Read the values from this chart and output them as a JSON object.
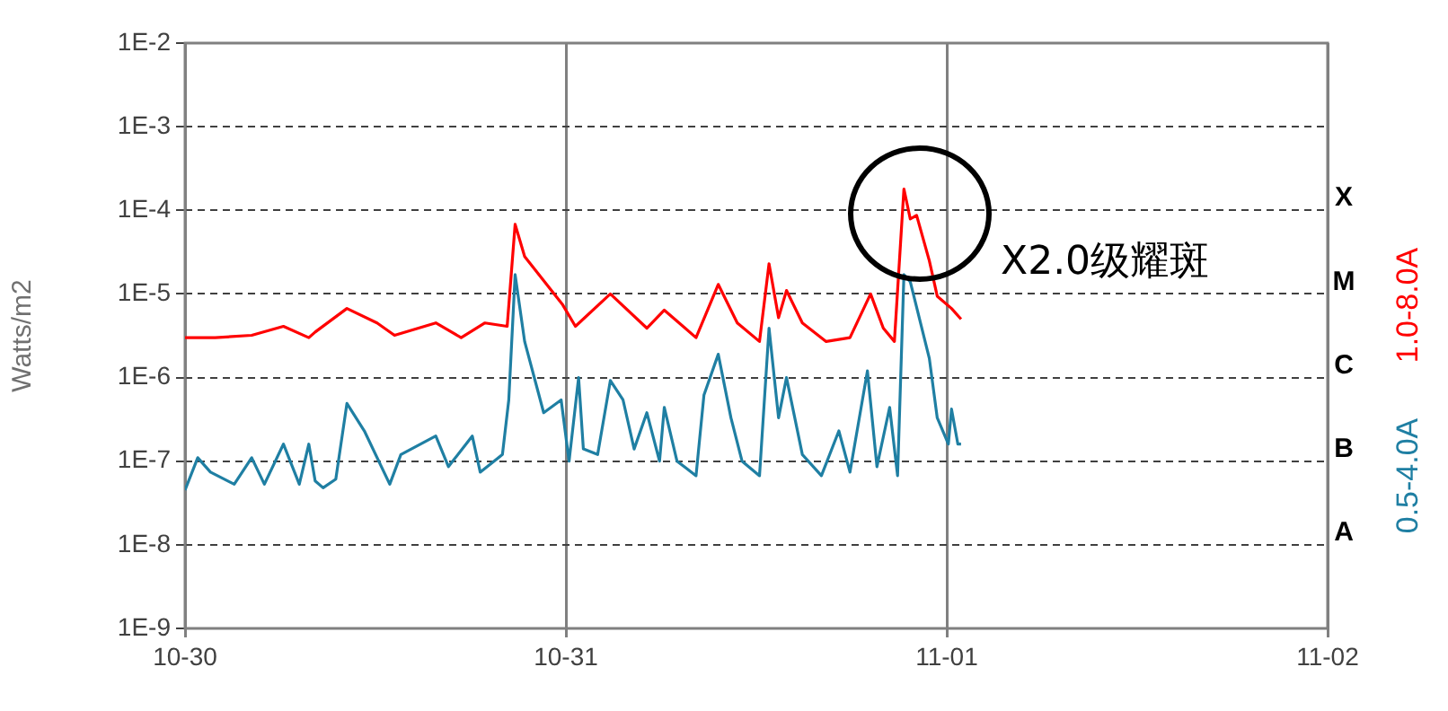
{
  "chart_data": {
    "type": "line",
    "ylabel": "Watts/m2",
    "log": "y",
    "legend": "right",
    "grid": true,
    "marker": "none",
    "line_style": "solid",
    "xlim": [
      "--10-30",
      "--11-02"
    ],
    "xticks": [
      {
        "value": "--10-30",
        "label": "10-30"
      },
      {
        "value": "--10-31",
        "label": "10-31"
      },
      {
        "value": "--11-01",
        "label": "11-01"
      },
      {
        "value": "--11-02",
        "label": "11-02"
      }
    ],
    "ylim": [
      1e-09,
      0.01
    ],
    "yticks": [
      {
        "value": 1e-09,
        "label": "1E-9"
      },
      {
        "value": 1e-08,
        "label": "1E-8"
      },
      {
        "value": 1e-07,
        "label": "1E-7"
      },
      {
        "value": 1e-06,
        "label": "1E-6"
      },
      {
        "value": 1e-05,
        "label": "1E-5"
      },
      {
        "value": 0.0001,
        "label": "1E-4"
      },
      {
        "value": 0.001,
        "label": "1E-3"
      },
      {
        "value": 0.01,
        "label": "1E-2"
      }
    ],
    "annotations": [
      "X2.0级耀斑",
      "A",
      "B",
      "C",
      "M",
      "X"
    ],
    "series": [
      {
        "name": "1.0-8.0A",
        "color": "#ff0000",
        "x": [
          "--10-30T00:00",
          "--10-30T01:54",
          "--10-30T04:12",
          "--10-30T06:12",
          "--10-30T07:48",
          "--10-30T08:12",
          "--10-30T10:12",
          "--10-30T12:06",
          "--10-30T13:12",
          "--10-30T15:48",
          "--10-30T17:24",
          "--10-30T18:54",
          "--10-30T20:18",
          "--10-30T20:48",
          "--10-30T21:24",
          "--10-30T23:48",
          "--10-31T00:36",
          "--10-31T02:48",
          "--10-31T05:06",
          "--10-31T06:12",
          "--10-31T08:12",
          "--10-31T09:36",
          "--10-31T10:48",
          "--10-31T12:12",
          "--10-31T12:48",
          "--10-31T13:24",
          "--10-31T13:54",
          "--10-31T14:54",
          "--10-31T16:24",
          "--10-31T17:54",
          "--10-31T19:12",
          "--10-31T20:00",
          "--10-31T20:42",
          "--10-31T21:18",
          "--10-31T21:42",
          "--10-31T22:06",
          "--10-31T22:54",
          "--10-31T23:24",
          "--11-01T00:18",
          "--11-01T00:54"
        ],
        "values": [
          3e-06,
          3e-06,
          3.2e-06,
          4.1e-06,
          3e-06,
          3.5e-06,
          6.7e-06,
          4.5e-06,
          3.2e-06,
          4.5e-06,
          3e-06,
          4.5e-06,
          4.1e-06,
          6.8e-05,
          2.8e-05,
          7.4e-06,
          4.1e-06,
          1e-05,
          3.9e-06,
          6.4e-06,
          3e-06,
          1.3e-05,
          4.5e-06,
          2.7e-06,
          2.3e-05,
          5.2e-06,
          1.1e-05,
          4.5e-06,
          2.7e-06,
          3e-06,
          1e-05,
          3.9e-06,
          2.7e-06,
          0.00018,
          7.9e-05,
          8.7e-05,
          2.5e-05,
          9.4e-06,
          6.7e-06,
          5e-06
        ]
      },
      {
        "name": "0.5-4.0A",
        "color": "#1f7fa3",
        "x": [
          "--10-30T00:00",
          "--10-30T00:48",
          "--10-30T01:36",
          "--10-30T03:06",
          "--10-30T04:12",
          "--10-30T05:00",
          "--10-30T06:12",
          "--10-30T07:12",
          "--10-30T07:48",
          "--10-30T08:12",
          "--10-30T08:42",
          "--10-30T09:30",
          "--10-30T10:12",
          "--10-30T11:18",
          "--10-30T12:54",
          "--10-30T13:36",
          "--10-30T15:48",
          "--10-30T16:36",
          "--10-30T18:06",
          "--10-30T18:36",
          "--10-30T20:00",
          "--10-30T20:24",
          "--10-30T20:48",
          "--10-30T21:24",
          "--10-30T22:36",
          "--10-30T23:42",
          "--10-31T00:12",
          "--10-31T00:48",
          "--10-31T01:06",
          "--10-31T02:00",
          "--10-31T02:48",
          "--10-31T03:36",
          "--10-31T04:18",
          "--10-31T05:06",
          "--10-31T05:54",
          "--10-31T06:12",
          "--10-31T07:00",
          "--10-31T08:12",
          "--10-31T08:42",
          "--10-31T09:36",
          "--10-31T10:24",
          "--10-31T11:06",
          "--10-31T12:12",
          "--10-31T12:48",
          "--10-31T13:24",
          "--10-31T13:54",
          "--10-31T14:54",
          "--10-31T16:06",
          "--10-31T17:12",
          "--10-31T17:54",
          "--10-31T19:00",
          "--10-31T19:36",
          "--10-31T20:24",
          "--10-31T20:54",
          "--10-31T21:18",
          "--10-31T21:42",
          "--10-31T22:54",
          "--10-31T23:24",
          "--11-01T00:06",
          "--11-01T00:18",
          "--11-01T00:42",
          "--11-01T00:54"
        ],
        "values": [
          4.5e-08,
          1.1e-07,
          7.4e-08,
          5.3e-08,
          1.1e-07,
          5.3e-08,
          1.6e-07,
          5.3e-08,
          1.6e-07,
          5.8e-08,
          4.8e-08,
          6.1e-08,
          4.9e-07,
          2.3e-07,
          5.3e-08,
          1.2e-07,
          2e-07,
          8.6e-08,
          2e-07,
          7.4e-08,
          1.2e-07,
          5.4e-07,
          1.7e-05,
          2.7e-06,
          3.8e-07,
          5.4e-07,
          1e-07,
          1e-06,
          1.4e-07,
          1.2e-07,
          9.2e-07,
          5.4e-07,
          1.4e-07,
          3.8e-07,
          1e-07,
          4.4e-07,
          1e-07,
          6.7e-08,
          6.2e-07,
          1.9e-06,
          3.3e-07,
          1e-07,
          6.7e-08,
          3.9e-06,
          3.3e-07,
          1e-06,
          1.2e-07,
          6.7e-08,
          2.3e-07,
          7.4e-08,
          1.2e-06,
          8.6e-08,
          4.4e-07,
          6.7e-08,
          1.7e-05,
          1.4e-05,
          1.7e-06,
          3.3e-07,
          1.6e-07,
          4.2e-07,
          1.6e-07,
          1.6e-07
        ]
      }
    ]
  }
}
